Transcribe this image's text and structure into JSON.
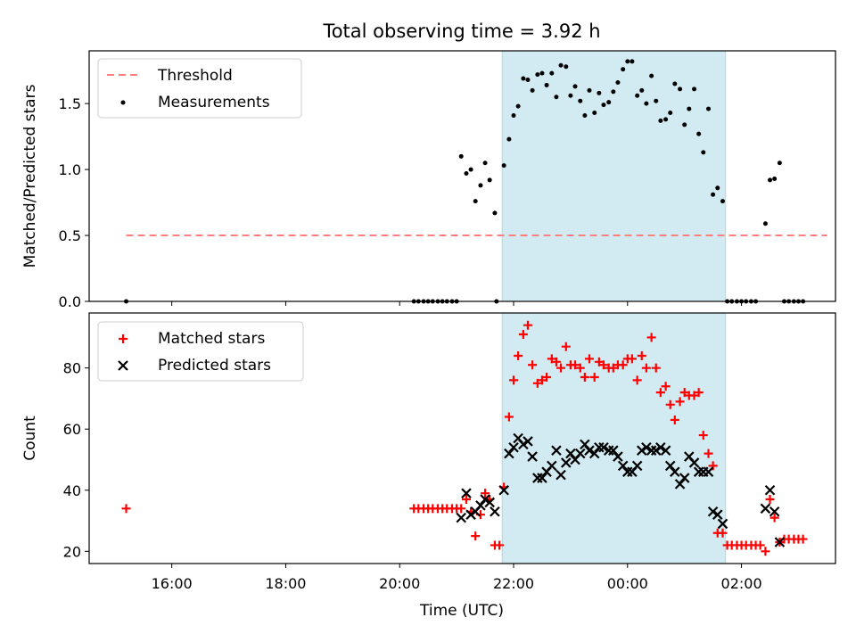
{
  "chart_data": {
    "title": "Total observing time = 3.92 h",
    "xlabel": "Time (UTC)",
    "x_unit": "hours (UTC, 24+ = after midnight)",
    "xlim": [
      14.55,
      27.65
    ],
    "xticks": [
      {
        "value": 16,
        "label": "16:00"
      },
      {
        "value": 18,
        "label": "18:00"
      },
      {
        "value": 20,
        "label": "20:00"
      },
      {
        "value": 22,
        "label": "22:00"
      },
      {
        "value": 24,
        "label": "00:00"
      },
      {
        "value": 26,
        "label": "02:00"
      }
    ],
    "colors": {
      "shade": "#add8e6",
      "threshold": "#ff7f7f",
      "measurements": "#000000",
      "matched": "#ff0000",
      "predicted": "#000000"
    },
    "panels": [
      {
        "id": "ratio",
        "type": "scatter",
        "ylabel": "Matched/Predicted stars",
        "ylim": [
          0,
          1.9
        ],
        "yticks": [
          0.0,
          0.5,
          1.0,
          1.5
        ],
        "ytick_labels": [
          "0.0",
          "0.5",
          "1.0",
          "1.5"
        ],
        "shaded_interval": [
          21.8,
          25.72
        ],
        "legend": {
          "position": "upper-left",
          "entries": [
            "Threshold",
            "Measurements"
          ]
        },
        "threshold": {
          "name": "Threshold",
          "x": [
            15.2,
            27.5
          ],
          "y": 0.5,
          "style": "dashed"
        },
        "series": [
          {
            "name": "Measurements",
            "marker": "dot",
            "points": [
              [
                15.2,
                0.0
              ],
              [
                20.25,
                0.0
              ],
              [
                20.33,
                0.0
              ],
              [
                20.42,
                0.0
              ],
              [
                20.5,
                0.0
              ],
              [
                20.58,
                0.0
              ],
              [
                20.67,
                0.0
              ],
              [
                20.75,
                0.0
              ],
              [
                20.83,
                0.0
              ],
              [
                20.92,
                0.0
              ],
              [
                21.0,
                0.0
              ],
              [
                21.08,
                1.1
              ],
              [
                21.17,
                0.97
              ],
              [
                21.25,
                1.0
              ],
              [
                21.33,
                0.76
              ],
              [
                21.42,
                0.88
              ],
              [
                21.5,
                1.05
              ],
              [
                21.58,
                0.92
              ],
              [
                21.67,
                0.67
              ],
              [
                21.7,
                0.0
              ],
              [
                21.83,
                1.03
              ],
              [
                21.92,
                1.23
              ],
              [
                22.0,
                1.41
              ],
              [
                22.08,
                1.48
              ],
              [
                22.17,
                1.69
              ],
              [
                22.25,
                1.68
              ],
              [
                22.33,
                1.6
              ],
              [
                22.42,
                1.72
              ],
              [
                22.5,
                1.73
              ],
              [
                22.58,
                1.64
              ],
              [
                22.67,
                1.73
              ],
              [
                22.75,
                1.55
              ],
              [
                22.83,
                1.79
              ],
              [
                22.92,
                1.78
              ],
              [
                23.0,
                1.56
              ],
              [
                23.08,
                1.63
              ],
              [
                23.17,
                1.52
              ],
              [
                23.25,
                1.41
              ],
              [
                23.33,
                1.6
              ],
              [
                23.42,
                1.43
              ],
              [
                23.5,
                1.58
              ],
              [
                23.58,
                1.49
              ],
              [
                23.67,
                1.51
              ],
              [
                23.75,
                1.59
              ],
              [
                23.83,
                1.66
              ],
              [
                23.92,
                1.76
              ],
              [
                24.0,
                1.82
              ],
              [
                24.08,
                1.82
              ],
              [
                24.17,
                1.56
              ],
              [
                24.25,
                1.6
              ],
              [
                24.33,
                1.5
              ],
              [
                24.42,
                1.71
              ],
              [
                24.5,
                1.52
              ],
              [
                24.58,
                1.37
              ],
              [
                24.67,
                1.38
              ],
              [
                24.75,
                1.43
              ],
              [
                24.83,
                1.65
              ],
              [
                24.92,
                1.61
              ],
              [
                25.0,
                1.34
              ],
              [
                25.08,
                1.46
              ],
              [
                25.17,
                1.61
              ],
              [
                25.25,
                1.27
              ],
              [
                25.33,
                1.13
              ],
              [
                25.42,
                1.46
              ],
              [
                25.5,
                0.81
              ],
              [
                25.58,
                0.86
              ],
              [
                25.67,
                0.76
              ],
              [
                25.75,
                0.0
              ],
              [
                25.83,
                0.0
              ],
              [
                25.92,
                0.0
              ],
              [
                26.0,
                0.0
              ],
              [
                26.08,
                0.0
              ],
              [
                26.17,
                0.0
              ],
              [
                26.25,
                0.0
              ],
              [
                26.42,
                0.59
              ],
              [
                26.5,
                0.92
              ],
              [
                26.58,
                0.93
              ],
              [
                26.67,
                1.05
              ],
              [
                26.75,
                0.0
              ],
              [
                26.83,
                0.0
              ],
              [
                26.92,
                0.0
              ],
              [
                27.0,
                0.0
              ],
              [
                27.08,
                0.0
              ]
            ]
          }
        ]
      },
      {
        "id": "counts",
        "type": "scatter",
        "ylabel": "Count",
        "ylim": [
          16,
          98
        ],
        "yticks": [
          20,
          40,
          60,
          80
        ],
        "ytick_labels": [
          "20",
          "40",
          "60",
          "80"
        ],
        "shaded_interval": [
          21.8,
          25.72
        ],
        "legend": {
          "position": "upper-left",
          "entries": [
            "Matched stars",
            "Predicted stars"
          ]
        },
        "series": [
          {
            "name": "Matched stars",
            "marker": "plus",
            "points": [
              [
                15.2,
                34
              ],
              [
                20.25,
                34
              ],
              [
                20.33,
                34
              ],
              [
                20.42,
                34
              ],
              [
                20.5,
                34
              ],
              [
                20.58,
                34
              ],
              [
                20.67,
                34
              ],
              [
                20.75,
                34
              ],
              [
                20.83,
                34
              ],
              [
                20.92,
                34
              ],
              [
                21.0,
                34
              ],
              [
                21.08,
                34
              ],
              [
                21.17,
                37
              ],
              [
                21.25,
                33
              ],
              [
                21.33,
                25
              ],
              [
                21.42,
                32
              ],
              [
                21.5,
                39
              ],
              [
                21.58,
                37
              ],
              [
                21.67,
                22
              ],
              [
                21.75,
                22
              ],
              [
                21.83,
                41
              ],
              [
                21.92,
                64
              ],
              [
                22.0,
                76
              ],
              [
                22.08,
                84
              ],
              [
                22.17,
                91
              ],
              [
                22.25,
                94
              ],
              [
                22.33,
                81
              ],
              [
                22.42,
                75
              ],
              [
                22.5,
                76
              ],
              [
                22.58,
                77
              ],
              [
                22.67,
                83
              ],
              [
                22.75,
                82
              ],
              [
                22.83,
                80
              ],
              [
                22.92,
                87
              ],
              [
                23.0,
                81
              ],
              [
                23.08,
                81
              ],
              [
                23.17,
                80
              ],
              [
                23.25,
                77
              ],
              [
                23.33,
                83
              ],
              [
                23.42,
                77
              ],
              [
                23.5,
                82
              ],
              [
                23.58,
                81
              ],
              [
                23.67,
                80
              ],
              [
                23.75,
                80
              ],
              [
                23.83,
                81
              ],
              [
                23.92,
                81
              ],
              [
                24.0,
                83
              ],
              [
                24.08,
                83
              ],
              [
                24.17,
                76
              ],
              [
                24.25,
                84
              ],
              [
                24.33,
                80
              ],
              [
                24.42,
                90
              ],
              [
                24.5,
                80
              ],
              [
                24.58,
                72
              ],
              [
                24.67,
                74
              ],
              [
                24.75,
                68
              ],
              [
                24.83,
                63
              ],
              [
                24.92,
                69
              ],
              [
                25.0,
                72
              ],
              [
                25.08,
                71
              ],
              [
                25.17,
                71
              ],
              [
                25.25,
                72
              ],
              [
                25.33,
                58
              ],
              [
                25.42,
                52
              ],
              [
                25.5,
                48
              ],
              [
                25.58,
                26
              ],
              [
                25.67,
                26
              ],
              [
                25.75,
                22
              ],
              [
                25.83,
                22
              ],
              [
                25.92,
                22
              ],
              [
                26.0,
                22
              ],
              [
                26.08,
                22
              ],
              [
                26.17,
                22
              ],
              [
                26.25,
                22
              ],
              [
                26.33,
                22
              ],
              [
                26.42,
                20
              ],
              [
                26.5,
                37
              ],
              [
                26.58,
                31
              ],
              [
                26.67,
                23
              ],
              [
                26.75,
                24
              ],
              [
                26.83,
                24
              ],
              [
                26.92,
                24
              ],
              [
                27.0,
                24
              ],
              [
                27.08,
                24
              ]
            ]
          },
          {
            "name": "Predicted stars",
            "marker": "x",
            "points": [
              [
                21.08,
                31
              ],
              [
                21.17,
                39
              ],
              [
                21.25,
                32
              ],
              [
                21.33,
                33
              ],
              [
                21.42,
                35
              ],
              [
                21.5,
                37
              ],
              [
                21.58,
                36
              ],
              [
                21.67,
                33
              ],
              [
                21.83,
                40
              ],
              [
                21.92,
                52
              ],
              [
                22.0,
                54
              ],
              [
                22.08,
                57
              ],
              [
                22.17,
                55
              ],
              [
                22.25,
                56
              ],
              [
                22.33,
                51
              ],
              [
                22.42,
                44
              ],
              [
                22.5,
                44
              ],
              [
                22.58,
                46
              ],
              [
                22.67,
                48
              ],
              [
                22.75,
                53
              ],
              [
                22.83,
                45
              ],
              [
                22.92,
                49
              ],
              [
                23.0,
                52
              ],
              [
                23.08,
                50
              ],
              [
                23.17,
                52
              ],
              [
                23.25,
                55
              ],
              [
                23.33,
                53
              ],
              [
                23.42,
                52
              ],
              [
                23.5,
                54
              ],
              [
                23.58,
                54
              ],
              [
                23.67,
                53
              ],
              [
                23.75,
                53
              ],
              [
                23.83,
                51
              ],
              [
                23.92,
                48
              ],
              [
                24.0,
                46
              ],
              [
                24.08,
                46
              ],
              [
                24.17,
                48
              ],
              [
                24.25,
                53
              ],
              [
                24.33,
                54
              ],
              [
                24.42,
                53
              ],
              [
                24.5,
                53
              ],
              [
                24.58,
                54
              ],
              [
                24.67,
                53
              ],
              [
                24.75,
                48
              ],
              [
                24.83,
                46
              ],
              [
                24.92,
                42
              ],
              [
                25.0,
                44
              ],
              [
                25.08,
                51
              ],
              [
                25.17,
                49
              ],
              [
                25.25,
                46
              ],
              [
                25.33,
                46
              ],
              [
                25.42,
                46
              ],
              [
                25.5,
                33
              ],
              [
                25.58,
                32
              ],
              [
                25.67,
                29
              ],
              [
                26.42,
                34
              ],
              [
                26.5,
                40
              ],
              [
                26.58,
                33
              ],
              [
                26.67,
                23
              ]
            ]
          }
        ]
      }
    ]
  }
}
